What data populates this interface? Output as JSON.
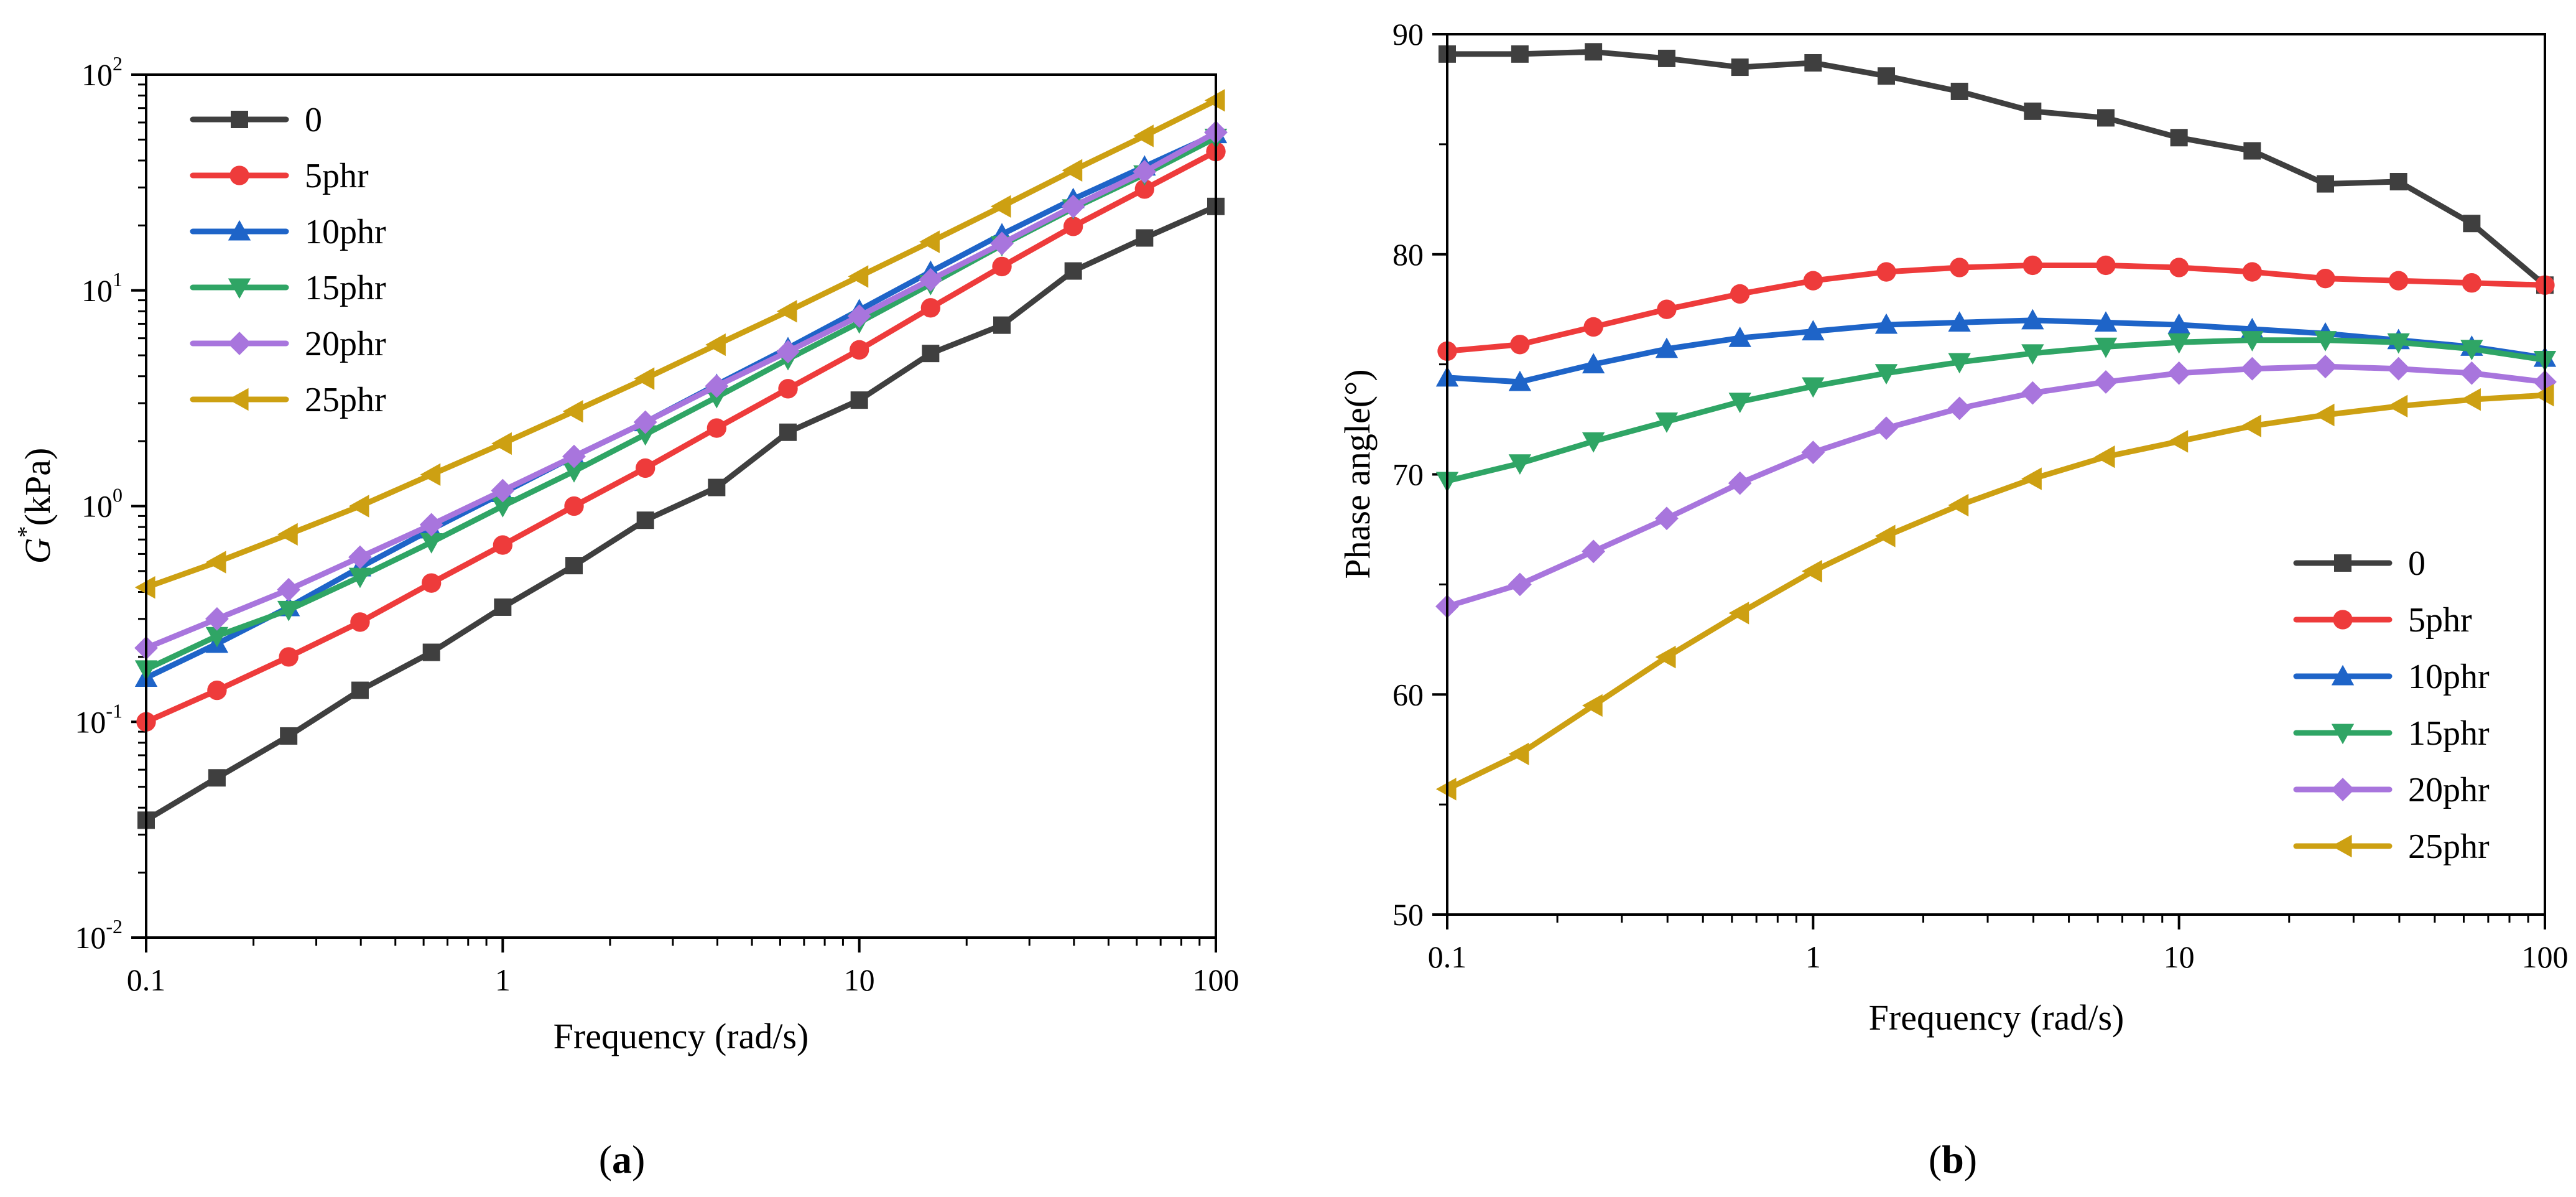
{
  "chart_data": [
    {
      "type": "line",
      "panel_label": "a",
      "xlabel": "Frequency (rad/s)",
      "ylabel": "G*(kPa)",
      "ylabel_parts": {
        "italic": "G",
        "sup": "*",
        "rest": "(kPa)"
      },
      "x_scale": "log",
      "y_scale": "log",
      "xlim": [
        0.1,
        100
      ],
      "ylim": [
        0.01,
        100
      ],
      "x_ticks": [
        0.1,
        1,
        10,
        100
      ],
      "x_tick_labels": [
        "0.1",
        "1",
        "10",
        "100"
      ],
      "y_ticks": [
        0.01,
        0.1,
        1,
        10,
        100
      ],
      "y_tick_labels": [
        {
          "base": "10",
          "exp": "-2"
        },
        {
          "base": "10",
          "exp": "-1"
        },
        {
          "base": "10",
          "exp": "0"
        },
        {
          "base": "10",
          "exp": "1"
        },
        {
          "base": "10",
          "exp": "2"
        }
      ],
      "legend_position": "top-left",
      "x": [
        0.1,
        0.158,
        0.251,
        0.398,
        0.631,
        1,
        1.585,
        2.512,
        3.981,
        6.31,
        10,
        15.85,
        25.12,
        39.81,
        63.1,
        100
      ],
      "series": [
        {
          "name": "0",
          "color": "#3f3f3f",
          "marker": "square",
          "values": [
            0.035,
            0.055,
            0.086,
            0.14,
            0.21,
            0.34,
            0.53,
            0.86,
            1.22,
            2.2,
            3.1,
            5.1,
            6.9,
            12.3,
            17.5,
            24.5
          ]
        },
        {
          "name": "5phr",
          "color": "#ee3b3b",
          "marker": "circle",
          "values": [
            0.1,
            0.14,
            0.2,
            0.29,
            0.44,
            0.66,
            1.0,
            1.5,
            2.3,
            3.5,
            5.3,
            8.3,
            12.9,
            19.8,
            29.5,
            44
          ]
        },
        {
          "name": "10phr",
          "color": "#1e64c8",
          "marker": "triangle-up",
          "values": [
            0.16,
            0.23,
            0.34,
            0.52,
            0.78,
            1.15,
            1.7,
            2.45,
            3.65,
            5.4,
            8.1,
            12.2,
            18.2,
            26.5,
            37.5,
            53
          ]
        },
        {
          "name": "15phr",
          "color": "#2fa565",
          "marker": "triangle-down",
          "values": [
            0.175,
            0.25,
            0.33,
            0.47,
            0.68,
            1.0,
            1.45,
            2.15,
            3.2,
            4.8,
            7.1,
            10.7,
            16.2,
            24,
            34.5,
            51
          ]
        },
        {
          "name": "20phr",
          "color": "#a875dd",
          "marker": "diamond",
          "values": [
            0.22,
            0.3,
            0.41,
            0.58,
            0.82,
            1.18,
            1.7,
            2.45,
            3.6,
            5.2,
            7.6,
            11.2,
            16.5,
            24.5,
            35.5,
            54
          ]
        },
        {
          "name": "25phr",
          "color": "#cda012",
          "marker": "triangle-left",
          "values": [
            0.42,
            0.55,
            0.74,
            1.0,
            1.4,
            1.95,
            2.75,
            3.9,
            5.6,
            8.0,
            11.6,
            16.8,
            24.5,
            36,
            52,
            76
          ]
        }
      ]
    },
    {
      "type": "line",
      "panel_label": "b",
      "xlabel": "Frequency (rad/s)",
      "ylabel": "Phase angle(°)",
      "x_scale": "log",
      "y_scale": "linear",
      "xlim": [
        0.1,
        100
      ],
      "ylim": [
        50,
        90
      ],
      "x_ticks": [
        0.1,
        1,
        10,
        100
      ],
      "x_tick_labels": [
        "0.1",
        "1",
        "10",
        "100"
      ],
      "y_ticks": [
        50,
        60,
        70,
        80,
        90
      ],
      "y_tick_labels": [
        "50",
        "60",
        "70",
        "80",
        "90"
      ],
      "legend_position": "bottom-right",
      "x": [
        0.1,
        0.158,
        0.251,
        0.398,
        0.631,
        1,
        1.585,
        2.512,
        3.981,
        6.31,
        10,
        15.85,
        25.12,
        39.81,
        63.1,
        100
      ],
      "series": [
        {
          "name": "0",
          "color": "#3f3f3f",
          "marker": "square",
          "values": [
            89.1,
            89.1,
            89.2,
            88.9,
            88.5,
            88.7,
            88.1,
            87.4,
            86.5,
            86.2,
            85.3,
            84.7,
            83.2,
            83.3,
            81.4,
            78.6
          ]
        },
        {
          "name": "5phr",
          "color": "#ee3b3b",
          "marker": "circle",
          "values": [
            75.6,
            75.9,
            76.7,
            77.5,
            78.2,
            78.8,
            79.2,
            79.4,
            79.5,
            79.5,
            79.4,
            79.2,
            78.9,
            78.8,
            78.7,
            78.6
          ]
        },
        {
          "name": "10phr",
          "color": "#1e64c8",
          "marker": "triangle-up",
          "values": [
            74.4,
            74.2,
            75.0,
            75.7,
            76.2,
            76.5,
            76.8,
            76.9,
            77.0,
            76.9,
            76.8,
            76.6,
            76.4,
            76.1,
            75.8,
            75.3
          ]
        },
        {
          "name": "15phr",
          "color": "#2fa565",
          "marker": "triangle-down",
          "values": [
            69.7,
            70.5,
            71.5,
            72.4,
            73.3,
            74.0,
            74.6,
            75.1,
            75.5,
            75.8,
            76.0,
            76.1,
            76.1,
            76.0,
            75.7,
            75.2
          ]
        },
        {
          "name": "20phr",
          "color": "#a875dd",
          "marker": "diamond",
          "values": [
            64.0,
            65.0,
            66.5,
            68.0,
            69.6,
            71.0,
            72.1,
            73.0,
            73.7,
            74.2,
            74.6,
            74.8,
            74.9,
            74.8,
            74.6,
            74.2
          ]
        },
        {
          "name": "25phr",
          "color": "#cda012",
          "marker": "triangle-left",
          "values": [
            55.7,
            57.3,
            59.5,
            61.7,
            63.7,
            65.6,
            67.2,
            68.6,
            69.8,
            70.8,
            71.5,
            72.2,
            72.7,
            73.1,
            73.4,
            73.6
          ]
        }
      ]
    }
  ]
}
